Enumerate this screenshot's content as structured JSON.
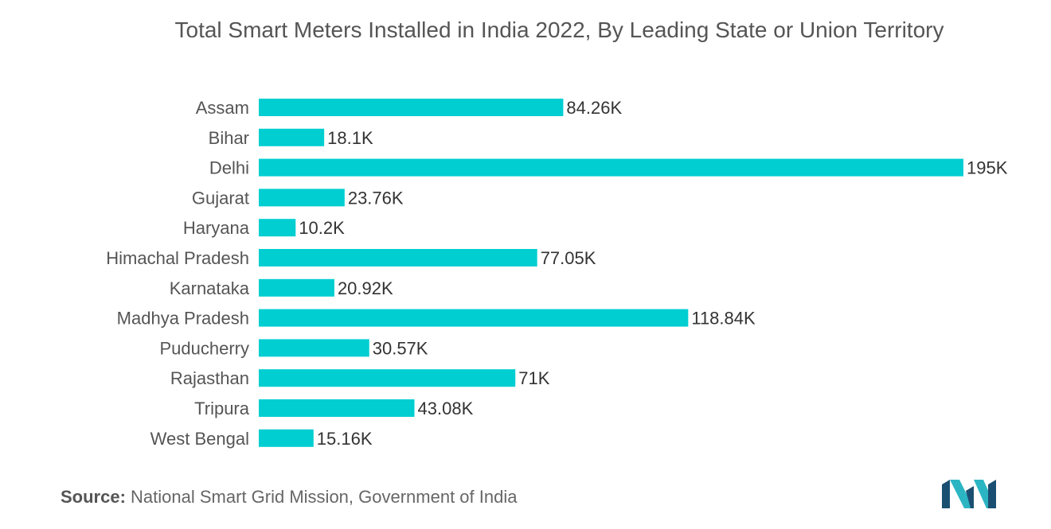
{
  "chart_data": {
    "type": "bar",
    "orientation": "horizontal",
    "title": "Total Smart Meters Installed in India 2022, By Leading State or Union Territory",
    "categories": [
      "Assam",
      "Bihar",
      "Delhi",
      "Gujarat",
      "Haryana",
      "Himachal Pradesh",
      "Karnataka",
      "Madhya Pradesh",
      "Puducherry",
      "Rajasthan",
      "Tripura",
      "West Bengal"
    ],
    "values": [
      84.26,
      18.1,
      195,
      23.76,
      10.2,
      77.05,
      20.92,
      118.84,
      30.57,
      71,
      43.08,
      15.16
    ],
    "value_labels": [
      "84.26K",
      "18.1K",
      "195K",
      "23.76K",
      "10.2K",
      "77.05K",
      "20.92K",
      "118.84K",
      "30.57K",
      "71K",
      "43.08K",
      "15.16K"
    ],
    "unit": "K",
    "xlim": [
      0,
      195
    ],
    "grid": false,
    "legend": "none",
    "bar_color": "#00CED1"
  },
  "source": {
    "label": "Source:",
    "text": "National Smart Grid Mission, Government of India"
  },
  "logo": {
    "icon": "mordor-intelligence-logo-icon",
    "colors": [
      "#1B4F72",
      "#2BB5C2"
    ]
  }
}
